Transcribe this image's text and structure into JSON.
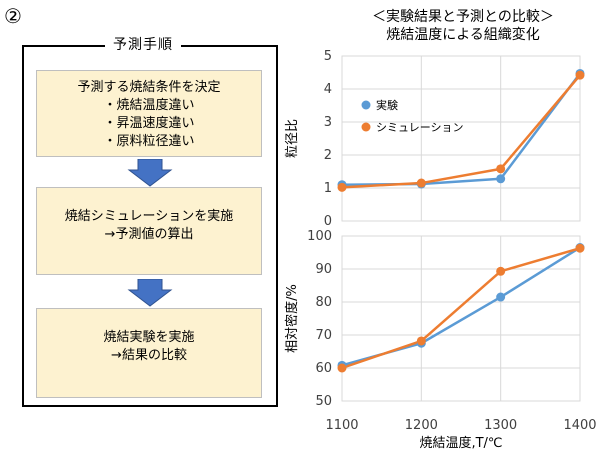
{
  "marker": "②",
  "flow": {
    "title": "予測手順",
    "step1": {
      "heading": "予測する焼結条件を決定",
      "items": [
        "・焼結温度違い",
        "・昇温速度違い",
        "・原料粒径違い"
      ]
    },
    "step2": {
      "line1": "焼結シミュレーションを実施",
      "line2": "→予測値の算出"
    },
    "step3": {
      "line1": "焼結実験を実施",
      "line2": "→結果の比較"
    },
    "arrow_color": "#4472c4",
    "box_color": "#fdf2d0"
  },
  "chart_title": {
    "line1": "＜実験結果と予測との比較＞",
    "line2": "焼結温度による組織変化"
  },
  "chart_data": [
    {
      "type": "line",
      "x": [
        1100,
        1200,
        1300,
        1400
      ],
      "xlim": [
        1100,
        1400
      ],
      "ylabel": "粒径比",
      "ylim": [
        0,
        5
      ],
      "yticks": [
        0,
        1,
        2,
        3,
        4,
        5
      ],
      "grid": true,
      "legend": "left",
      "series": [
        {
          "name": "実験",
          "color": "#5b9bd5",
          "values": [
            1.1,
            1.12,
            1.28,
            4.47
          ]
        },
        {
          "name": "シミュレーション",
          "color": "#ed7d31",
          "values": [
            1.02,
            1.15,
            1.58,
            4.42
          ]
        }
      ]
    },
    {
      "type": "line",
      "x": [
        1100,
        1200,
        1300,
        1400
      ],
      "xlim": [
        1100,
        1400
      ],
      "xticks": [
        1100,
        1200,
        1300,
        1400
      ],
      "xlabel": "焼結温度,T/℃",
      "ylabel": "相対密度/%",
      "ylim": [
        50,
        100
      ],
      "yticks": [
        50,
        60,
        70,
        80,
        90,
        100
      ],
      "grid": true,
      "series": [
        {
          "name": "実験",
          "color": "#5b9bd5",
          "values": [
            60.8,
            67.5,
            81.5,
            96.5
          ]
        },
        {
          "name": "シミュレーション",
          "color": "#ed7d31",
          "values": [
            60.0,
            68.2,
            89.3,
            96.3
          ]
        }
      ]
    }
  ]
}
